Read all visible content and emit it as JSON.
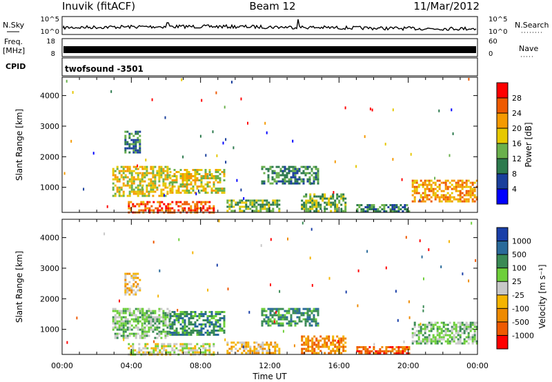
{
  "header": {
    "station": "Inuvik (fitACF)",
    "beam": "Beam 12",
    "date": "11/Mar/2012"
  },
  "colors": {
    "power_scale": [
      "#0000ff",
      "#1a3f9c",
      "#2d7a4e",
      "#6ab04c",
      "#e6c800",
      "#f59a00",
      "#ee5a00",
      "#ff0000"
    ],
    "velocity_scale": [
      "#1a3fa8",
      "#2a6a9a",
      "#3a8a55",
      "#6ecf3a",
      "#c8c8c8",
      "#f5b400",
      "#ee8a00",
      "#ef5a00",
      "#ff0000"
    ]
  },
  "chart_data": [
    {
      "type": "line",
      "panel": "noise",
      "left_label": "N.Sky",
      "right_label": "N.Search",
      "left_ticks": [
        "10^5",
        "10^0"
      ],
      "right_ticks": [
        "10^5",
        "10^0"
      ]
    },
    {
      "type": "line",
      "panel": "frequency",
      "left_label": "Freq.",
      "left_unit": "[MHz]",
      "right_label": "Nave",
      "left_ticks": [
        18,
        8
      ],
      "right_ticks": [
        60,
        0
      ]
    },
    {
      "type": "table",
      "panel": "cpid",
      "label": "CPID",
      "value": "twofsound -3501"
    },
    {
      "type": "heatmap",
      "panel": "power",
      "ylabel": "Slant Range [km]",
      "y_ticks": [
        1000,
        2000,
        3000,
        4000
      ],
      "ylim": [
        180,
        4600
      ],
      "xlim": [
        0,
        24
      ],
      "colorbar_label": "Power [dB]",
      "colorbar_ticks": [
        4,
        8,
        12,
        16,
        20,
        24,
        28
      ],
      "colorbar_range": [
        0,
        32
      ],
      "regions": [
        {
          "t": [
            2.9,
            4.6
          ],
          "r": [
            700,
            1700
          ],
          "level": 20
        },
        {
          "t": [
            4.6,
            6.2
          ],
          "r": [
            700,
            1700
          ],
          "level": 18
        },
        {
          "t": [
            6.2,
            9.4
          ],
          "r": [
            800,
            1600
          ],
          "level": 16
        },
        {
          "t": [
            3.8,
            8.8
          ],
          "r": [
            200,
            550
          ],
          "level": 26
        },
        {
          "t": [
            3.6,
            4.5
          ],
          "r": [
            2150,
            2850
          ],
          "level": 10
        },
        {
          "t": [
            9.5,
            12.5
          ],
          "r": [
            250,
            600
          ],
          "level": 14
        },
        {
          "t": [
            11.5,
            14.8
          ],
          "r": [
            1100,
            1700
          ],
          "level": 10
        },
        {
          "t": [
            13.8,
            16.4
          ],
          "r": [
            250,
            800
          ],
          "level": 12
        },
        {
          "t": [
            17.0,
            20.0
          ],
          "r": [
            200,
            450
          ],
          "level": 10
        },
        {
          "t": [
            20.2,
            24.0
          ],
          "r": [
            550,
            1250
          ],
          "level": 22
        }
      ]
    },
    {
      "type": "heatmap",
      "panel": "velocity",
      "ylabel": "Slant Range [km]",
      "xlabel": "Time UT",
      "y_ticks": [
        1000,
        2000,
        3000,
        4000
      ],
      "ylim": [
        180,
        4600
      ],
      "x_ticks": [
        "00:00",
        "04:00",
        "08:00",
        "12:00",
        "16:00",
        "20:00",
        "00:00"
      ],
      "xlim": [
        0,
        24
      ],
      "colorbar_label": "Velocity [m s⁻¹]",
      "colorbar_ticks": [
        1000,
        500,
        100,
        25,
        -25,
        -100,
        -500,
        -1000
      ],
      "regions": [
        {
          "t": [
            2.9,
            4.6
          ],
          "r": [
            700,
            1700
          ],
          "level": 3
        },
        {
          "t": [
            4.6,
            6.2
          ],
          "r": [
            700,
            1700
          ],
          "level": 3
        },
        {
          "t": [
            6.2,
            9.4
          ],
          "r": [
            800,
            1600
          ],
          "level": 2
        },
        {
          "t": [
            3.8,
            8.8
          ],
          "r": [
            200,
            550
          ],
          "level": 4
        },
        {
          "t": [
            3.6,
            4.5
          ],
          "r": [
            2150,
            2850
          ],
          "level": 5
        },
        {
          "t": [
            9.5,
            12.5
          ],
          "r": [
            250,
            600
          ],
          "level": 5
        },
        {
          "t": [
            11.5,
            14.8
          ],
          "r": [
            1100,
            1700
          ],
          "level": 2
        },
        {
          "t": [
            13.8,
            16.4
          ],
          "r": [
            250,
            800
          ],
          "level": 6
        },
        {
          "t": [
            17.0,
            20.0
          ],
          "r": [
            200,
            450
          ],
          "level": 7
        },
        {
          "t": [
            20.2,
            24.0
          ],
          "r": [
            550,
            1250
          ],
          "level": 3
        }
      ]
    }
  ]
}
